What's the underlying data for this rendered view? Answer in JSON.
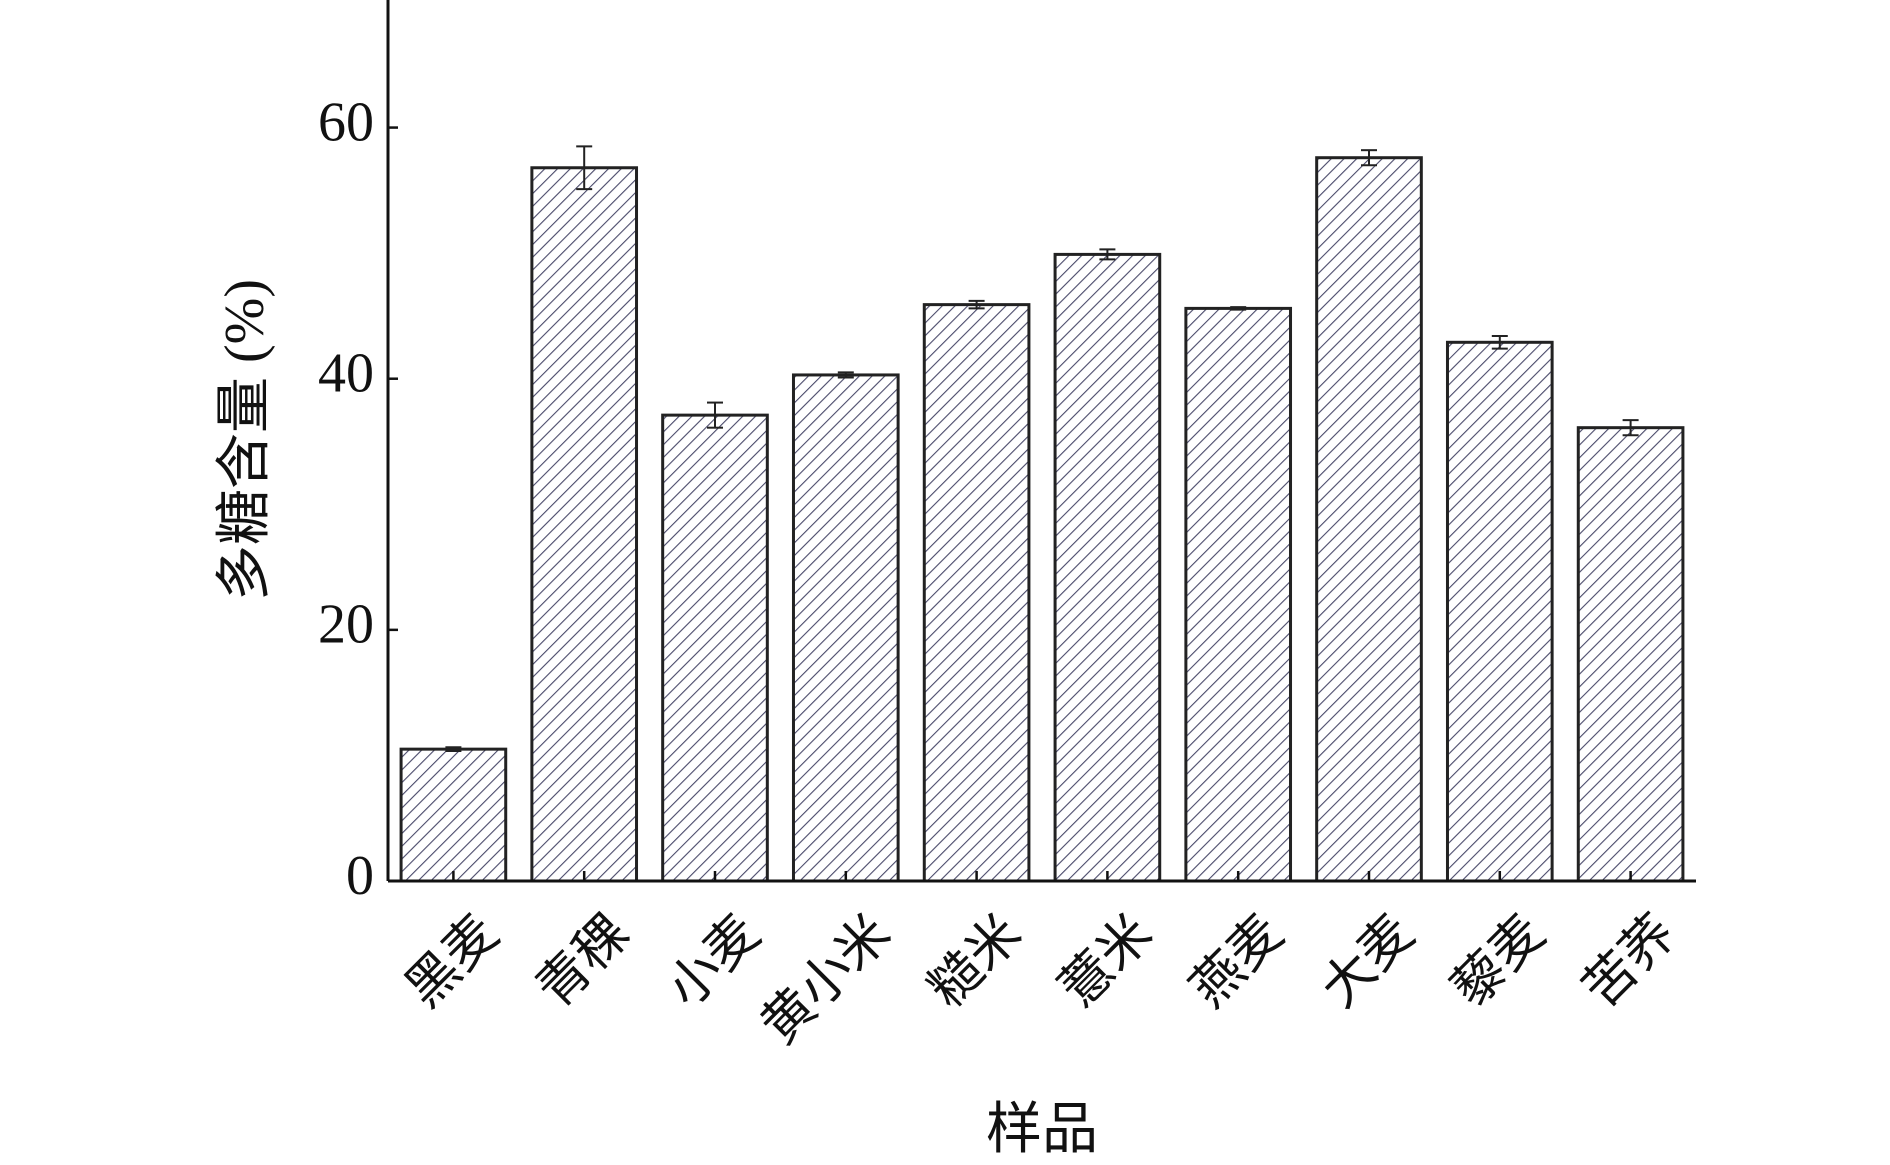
{
  "chart_data": {
    "type": "bar",
    "x_label": "样品",
    "y_label": "多糖含量 (%)",
    "categories": [
      "黑麦",
      "青稞",
      "小麦",
      "黄小米",
      "糙米",
      "薏米",
      "燕麦",
      "大麦",
      "藜麦",
      "苦荞"
    ],
    "values": [
      10.5,
      56.8,
      37.1,
      40.3,
      45.9,
      49.9,
      45.6,
      57.6,
      42.9,
      36.1
    ],
    "errors": [
      0.15,
      1.7,
      1.0,
      0.2,
      0.3,
      0.4,
      0.1,
      0.6,
      0.5,
      0.6
    ],
    "color": "#4a4a6a",
    "ylim": [
      0,
      70
    ],
    "yticks": [
      0,
      20,
      40,
      60
    ]
  }
}
